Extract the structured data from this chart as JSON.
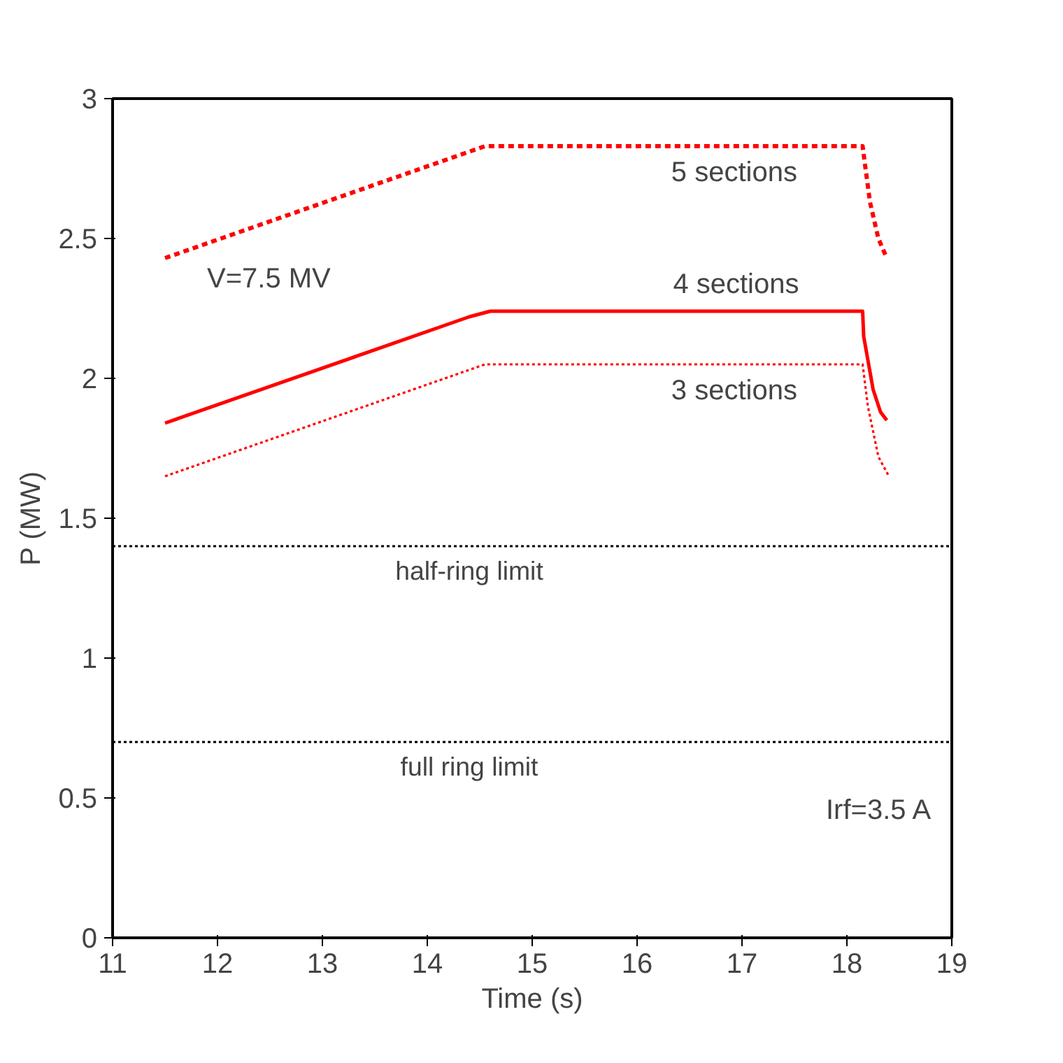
{
  "chart_data": {
    "type": "line",
    "xlabel": "Time (s)",
    "ylabel": "P (MW)",
    "xlim": [
      11,
      19
    ],
    "ylim": [
      0,
      3
    ],
    "xticks": [
      11,
      12,
      13,
      14,
      15,
      16,
      17,
      18,
      19
    ],
    "yticks": [
      0,
      0.5,
      1,
      1.5,
      2,
      2.5,
      3
    ],
    "grid": false,
    "legend": false,
    "series": [
      {
        "name": "5 sections",
        "color": "#ff0000",
        "line_style": "dashed",
        "x": [
          11.5,
          14.55,
          18.15,
          18.16,
          18.22,
          18.3,
          18.38
        ],
        "values": [
          2.43,
          2.83,
          2.83,
          2.8,
          2.63,
          2.5,
          2.43
        ]
      },
      {
        "name": "4 sections",
        "color": "#ff0000",
        "line_style": "solid",
        "x": [
          11.5,
          14.4,
          14.6,
          18.15,
          18.16,
          18.25,
          18.32,
          18.38
        ],
        "values": [
          1.84,
          2.22,
          2.24,
          2.24,
          2.15,
          1.96,
          1.88,
          1.85
        ]
      },
      {
        "name": "3 sections",
        "color": "#ff0000",
        "line_style": "dotted",
        "x": [
          11.5,
          14.55,
          18.15,
          18.2,
          18.3,
          18.4
        ],
        "values": [
          1.65,
          2.05,
          2.05,
          1.9,
          1.72,
          1.65
        ]
      }
    ],
    "ref_lines": [
      {
        "axis": "y",
        "value": 1.4,
        "label": "half-ring limit",
        "color": "#000000",
        "line_style": "dotted"
      },
      {
        "axis": "y",
        "value": 0.7,
        "label": "full ring limit",
        "color": "#000000",
        "line_style": "dotted"
      }
    ],
    "annotations": [
      "V=7.5 MV",
      "Irf=3.5 A"
    ]
  }
}
